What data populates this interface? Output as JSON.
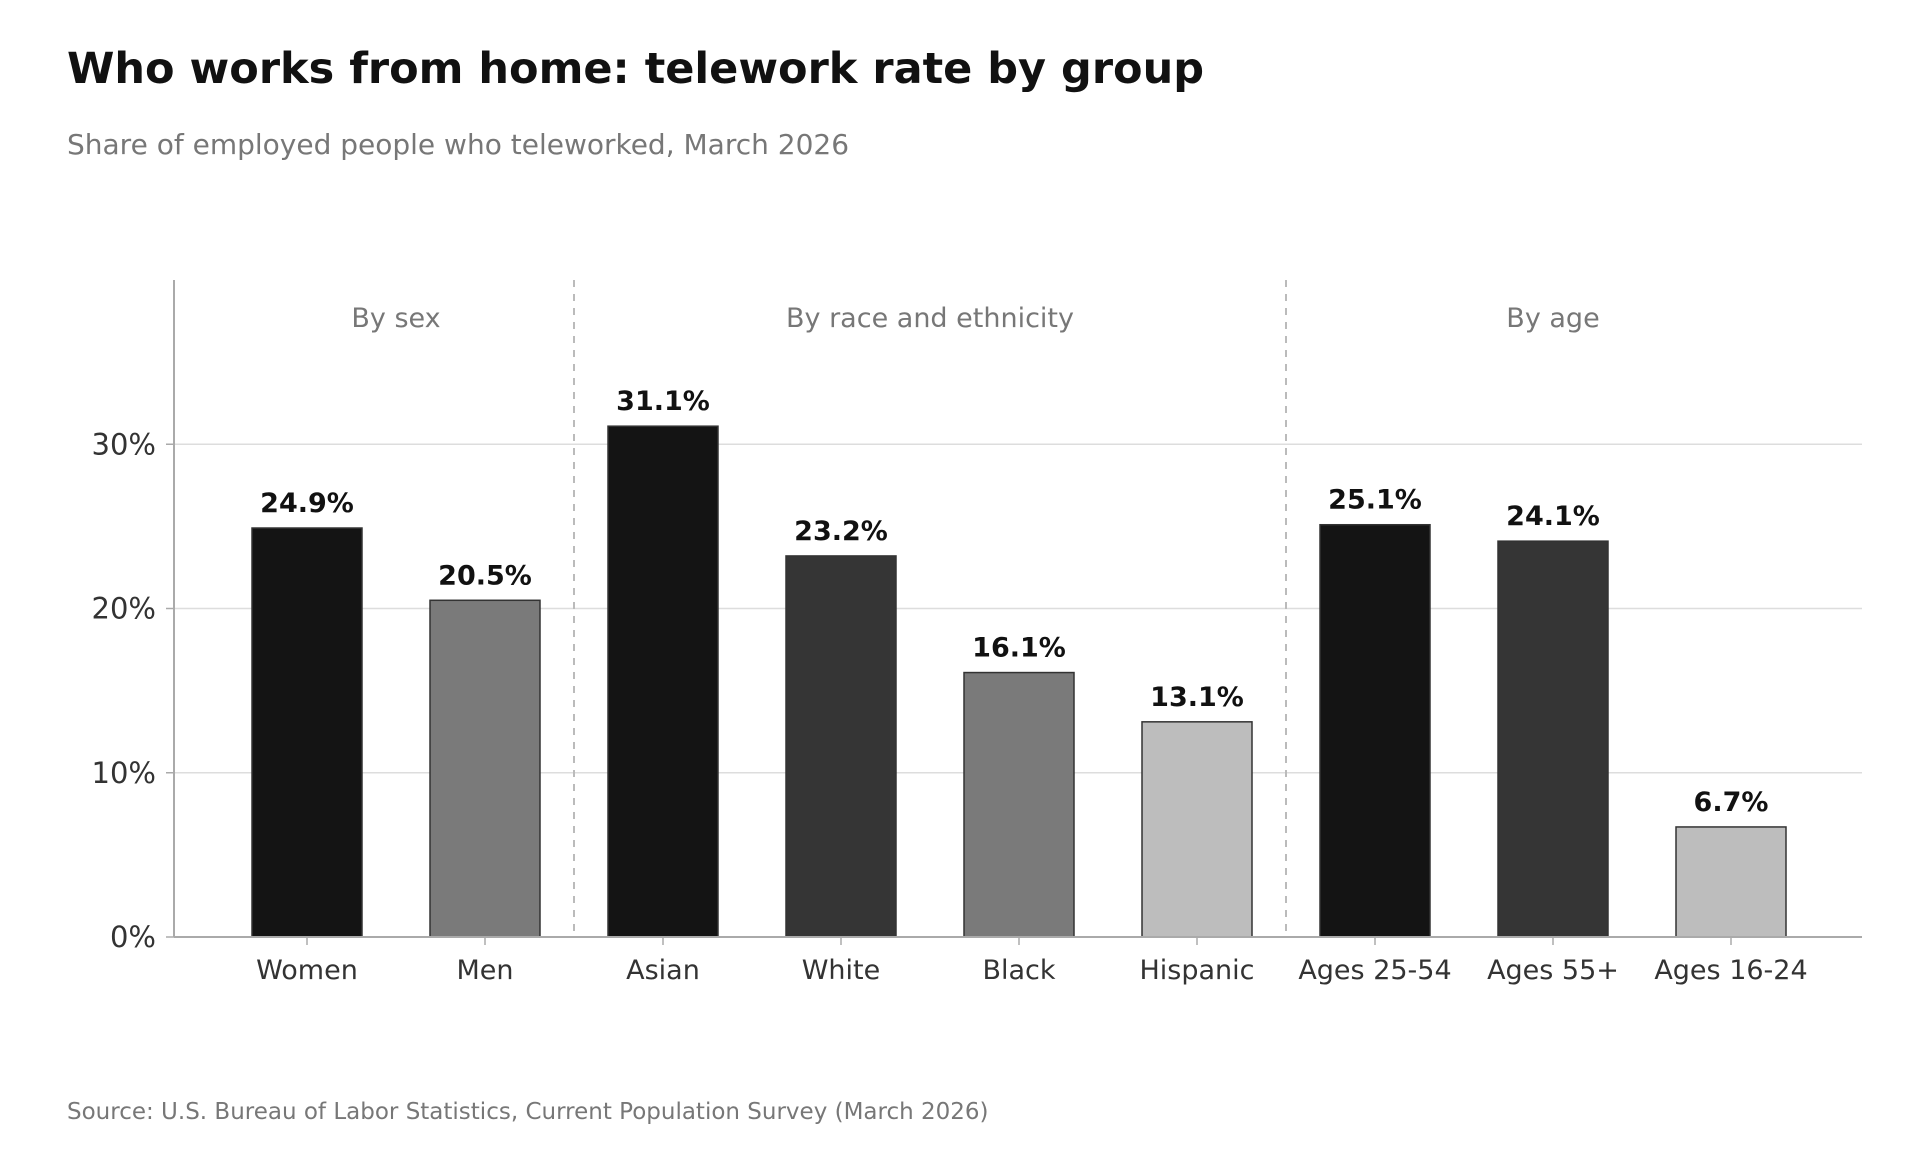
{
  "chart_data": {
    "type": "bar",
    "title": "Who works from home: telework rate by group",
    "subtitle": "Share of employed people who teleworked, March 2026",
    "source": "Source: U.S. Bureau of Labor Statistics, Current Population Survey (March 2026)",
    "xlabel": "",
    "ylabel": "",
    "ylim": [
      0,
      40
    ],
    "yticks": [
      0,
      10,
      20,
      30
    ],
    "ytick_labels": [
      "0%",
      "10%",
      "20%",
      "30%"
    ],
    "grid": "horizontal",
    "categories": [
      "Women",
      "Men",
      "Asian",
      "White",
      "Black",
      "Hispanic",
      "Ages 25-54",
      "Ages 55+",
      "Ages 16-24"
    ],
    "values": [
      24.9,
      20.5,
      31.1,
      23.2,
      16.1,
      13.1,
      25.1,
      24.1,
      6.7
    ],
    "data_labels": [
      "24.9%",
      "20.5%",
      "31.1%",
      "23.2%",
      "16.1%",
      "13.1%",
      "25.1%",
      "24.1%",
      "6.7%"
    ],
    "bar_colors": [
      "#141414",
      "#7a7a7a",
      "#141414",
      "#353535",
      "#7a7a7a",
      "#bdbdbd",
      "#141414",
      "#353535",
      "#bdbdbd"
    ],
    "groups": [
      {
        "label": "By sex",
        "start": 0,
        "end": 1
      },
      {
        "label": "By race and ethnicity",
        "start": 2,
        "end": 5
      },
      {
        "label": "By age",
        "start": 6,
        "end": 8
      }
    ]
  }
}
